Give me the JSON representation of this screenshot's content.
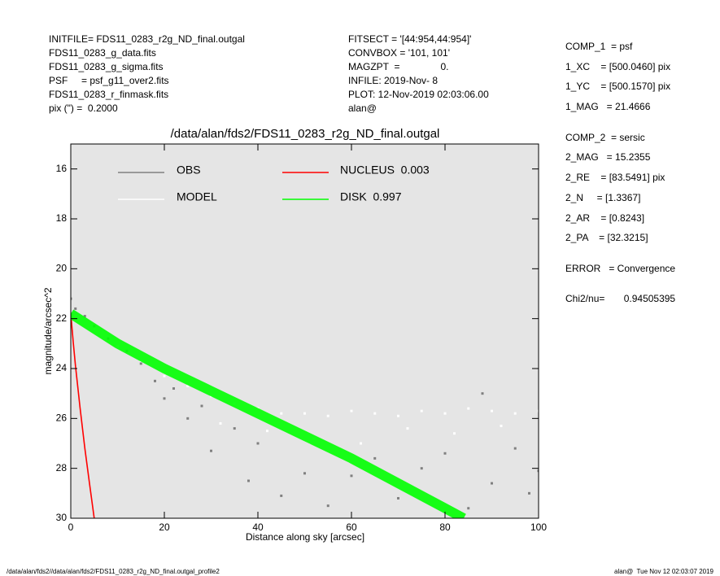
{
  "header": {
    "left": [
      "INITFILE= FDS11_0283_r2g_ND_final.outgal",
      "FDS11_0283_g_data.fits",
      "FDS11_0283_g_sigma.fits",
      "PSF     = psf_g11_over2.fits",
      "FDS11_0283_r_finmask.fits",
      "pix (\") =  0.2000"
    ],
    "middle": [
      "FITSECT = '[44:954,44:954]'",
      "CONVBOX = '101, 101'",
      "MAGZPT  =               0.",
      "INFILE: 2019-Nov- 8",
      "PLOT: 12-Nov-2019 02:03:06.00",
      "alan@"
    ]
  },
  "panel": [
    "COMP_1  = psf",
    "1_XC    = [500.0460] pix",
    "1_YC    = [500.1570] pix",
    "1_MAG   = 21.4666",
    "COMP_2  = sersic",
    "2_MAG   = 15.2355",
    "2_RE    = [83.5491] pix",
    "2_N     = [1.3367]",
    "2_AR    = [0.8243]",
    "2_PA    = [32.3215]",
    "ERROR   = Convergence",
    "Chi2/nu=       0.94505395"
  ],
  "footer": {
    "left": "/data/alan/fds2//data/alan/fds2/FDS11_0283_r2g_ND_final.outgal_profile2",
    "right": "alan@  Tue Nov 12 02:03:07 2019"
  },
  "chart_data": {
    "type": "scatter",
    "title": "/data/alan/fds2/FDS11_0283_r2g_ND_final.outgal",
    "x_label": "Distance along sky [arcsec]",
    "y_label": "magnitude/arcsec^2",
    "xlim": [
      0,
      100
    ],
    "xticks": [
      0,
      20,
      40,
      60,
      80,
      100
    ],
    "ylim": [
      15,
      30
    ],
    "yticks": [
      16,
      18,
      20,
      22,
      24,
      26,
      28,
      30
    ],
    "y_inverted": true,
    "series": [
      {
        "name": "OBS",
        "color": "#808080",
        "style": "points",
        "x": [
          0,
          1,
          3,
          5,
          8,
          12,
          15,
          18,
          20,
          22,
          25,
          28,
          30,
          35,
          38,
          40,
          45,
          50,
          55,
          60,
          65,
          70,
          75,
          80,
          85,
          88,
          90,
          95,
          98,
          100
        ],
        "values": [
          21.2,
          21.6,
          21.9,
          22.3,
          22.8,
          23.3,
          23.8,
          24.5,
          25.2,
          24.8,
          26.0,
          25.5,
          27.3,
          26.4,
          28.5,
          27.0,
          29.1,
          28.2,
          29.5,
          28.3,
          27.6,
          29.2,
          28.0,
          27.4,
          29.6,
          25.0,
          28.6,
          27.2,
          29.0,
          28.1
        ]
      },
      {
        "name": "MODEL",
        "color": "#ffffff",
        "style": "points",
        "x": [
          1,
          5,
          10,
          15,
          20,
          25,
          30,
          35,
          40,
          45,
          50,
          55,
          60,
          65,
          70,
          75,
          80,
          85,
          90,
          95,
          100,
          32,
          42,
          52,
          62,
          72,
          82,
          92
        ],
        "values": [
          21.9,
          22.4,
          23.1,
          23.7,
          24.3,
          24.7,
          25.1,
          25.4,
          25.6,
          25.8,
          25.8,
          25.9,
          25.7,
          25.8,
          25.9,
          25.7,
          25.8,
          25.6,
          25.7,
          25.8,
          25.7,
          26.2,
          26.5,
          26.8,
          27.0,
          26.4,
          26.6,
          26.3
        ]
      },
      {
        "name": "NUCLEUS  0.003",
        "color": "#ff0000",
        "style": "line",
        "x": [
          0,
          0.5,
          1,
          2,
          3,
          4,
          5
        ],
        "values": [
          21.8,
          22.9,
          23.9,
          25.6,
          27.2,
          28.6,
          30
        ]
      },
      {
        "name": "DISK  0.997",
        "color": "#00ff00",
        "style": "band",
        "x": [
          0,
          5,
          10,
          20,
          30,
          40,
          50,
          60,
          70,
          80,
          84
        ],
        "values": [
          21.8,
          22.4,
          23.0,
          24.0,
          24.9,
          25.8,
          26.7,
          27.6,
          28.6,
          29.6,
          30
        ]
      }
    ]
  }
}
